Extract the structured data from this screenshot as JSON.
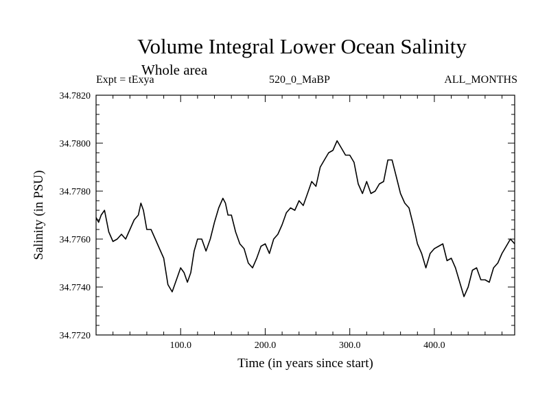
{
  "chart_data": {
    "type": "line",
    "title": "Volume Integral Lower Ocean Salinity",
    "subtitle": "Whole area",
    "annotations": {
      "left": "Expt = tExya",
      "center": "520_0_MaBP",
      "right": "ALL_MONTHS"
    },
    "xlabel": "Time (in years since start)",
    "ylabel": "Salinity (in PSU)",
    "xlim": [
      0,
      495
    ],
    "ylim": [
      34.772,
      34.782
    ],
    "xticks": [
      100,
      200,
      300,
      400
    ],
    "xtick_labels": [
      "100.0",
      "200.0",
      "300.0",
      "400.0"
    ],
    "yticks": [
      34.772,
      34.774,
      34.776,
      34.778,
      34.78,
      34.782
    ],
    "ytick_labels": [
      "34.7720",
      "34.7740",
      "34.7760",
      "34.7780",
      "34.7800",
      "34.7820"
    ],
    "grid": false,
    "series": [
      {
        "x": [
          0,
          3,
          6,
          10,
          15,
          20,
          25,
          30,
          35,
          40,
          45,
          50,
          53,
          56,
          60,
          65,
          70,
          75,
          80,
          85,
          90,
          93,
          96,
          100,
          104,
          108,
          112,
          116,
          120,
          125,
          130,
          135,
          140,
          145,
          150,
          153,
          156,
          160,
          165,
          170,
          175,
          180,
          185,
          190,
          195,
          200,
          205,
          210,
          215,
          220,
          225,
          230,
          235,
          240,
          245,
          250,
          255,
          260,
          265,
          270,
          275,
          280,
          285,
          290,
          295,
          300,
          305,
          310,
          315,
          320,
          325,
          330,
          335,
          340,
          345,
          350,
          355,
          360,
          365,
          370,
          375,
          380,
          385,
          390,
          395,
          400,
          405,
          410,
          415,
          420,
          425,
          430,
          435,
          440,
          445,
          450,
          455,
          460,
          465,
          470,
          475,
          480,
          485,
          490,
          495
        ],
        "y": [
          34.7769,
          34.7767,
          34.777,
          34.7772,
          34.7763,
          34.7759,
          34.776,
          34.7762,
          34.776,
          34.7764,
          34.7768,
          34.777,
          34.7775,
          34.7772,
          34.7764,
          34.7764,
          34.776,
          34.7756,
          34.7752,
          34.7741,
          34.7738,
          34.7741,
          34.7744,
          34.7748,
          34.7746,
          34.7742,
          34.7746,
          34.7755,
          34.776,
          34.776,
          34.7755,
          34.776,
          34.7767,
          34.7773,
          34.7777,
          34.7775,
          34.777,
          34.777,
          34.7763,
          34.7758,
          34.7756,
          34.775,
          34.7748,
          34.7752,
          34.7757,
          34.7758,
          34.7754,
          34.776,
          34.7762,
          34.7766,
          34.7771,
          34.7773,
          34.7772,
          34.7776,
          34.7774,
          34.7779,
          34.7784,
          34.7782,
          34.779,
          34.7793,
          34.7796,
          34.7797,
          34.7801,
          34.7798,
          34.7795,
          34.7795,
          34.7792,
          34.7783,
          34.7779,
          34.7784,
          34.7779,
          34.778,
          34.7783,
          34.7784,
          34.7793,
          34.7793,
          34.7786,
          34.7779,
          34.7775,
          34.7773,
          34.7766,
          34.7758,
          34.7754,
          34.7748,
          34.7754,
          34.7756,
          34.7757,
          34.7758,
          34.7751,
          34.7752,
          34.7748,
          34.7742,
          34.7736,
          34.774,
          34.7747,
          34.7748,
          34.7743,
          34.7743,
          34.7742,
          34.7748,
          34.775,
          34.7754,
          34.7757,
          34.776,
          34.7758
        ]
      }
    ]
  }
}
